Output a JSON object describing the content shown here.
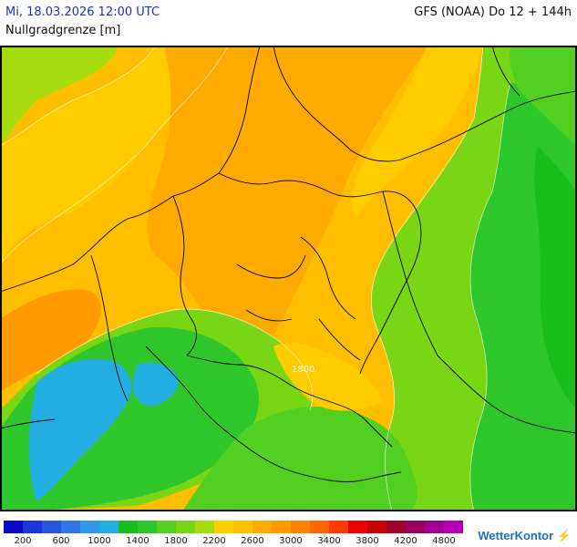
{
  "header": {
    "date_label": "Mi, 18.03.2026 12:00 UTC",
    "model_label": "GFS (NOAA) Do 12 + 144h",
    "parameter_label": "Nullgradgrenze [m]"
  },
  "map": {
    "contour_label": "1800",
    "region": "Central Europe / Germany"
  },
  "legend": {
    "colors": [
      "#0a0ac8",
      "#1c36d8",
      "#2656e0",
      "#2f76e6",
      "#3296e8",
      "#22aee0",
      "#1bbd1b",
      "#2fc62b",
      "#52cf20",
      "#79d615",
      "#a6dc0f",
      "#ffcc00",
      "#ffbf00",
      "#ffaa00",
      "#ff9a00",
      "#ff8000",
      "#ff6600",
      "#ff3a00",
      "#ee0000",
      "#c80000",
      "#a0002a",
      "#960060",
      "#a00090",
      "#b400b4"
    ],
    "tick_labels": [
      "200",
      "600",
      "1000",
      "1400",
      "1800",
      "2200",
      "2600",
      "3000",
      "3400",
      "3800",
      "4200",
      "4800"
    ]
  },
  "logo": {
    "text": "WetterKontor"
  }
}
